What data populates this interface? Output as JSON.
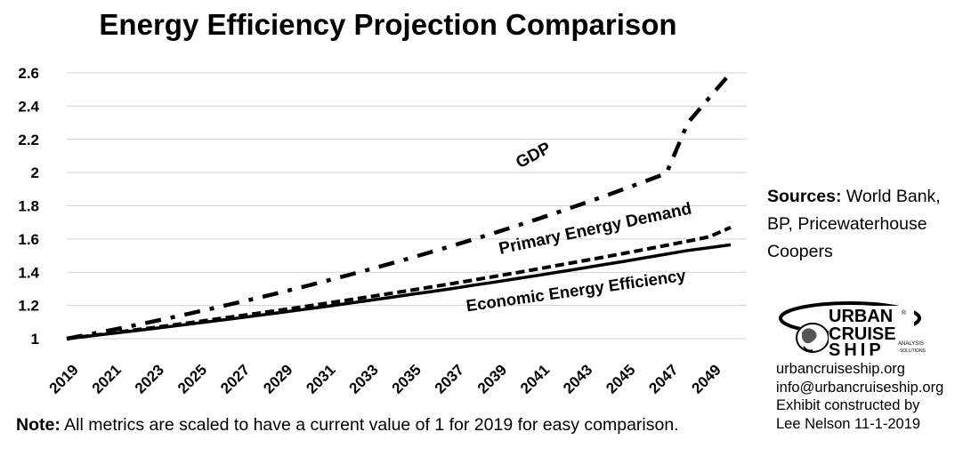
{
  "chart_data": {
    "type": "line",
    "title": "Energy Efficiency Projection Comparison",
    "xlabel": "",
    "ylabel": "",
    "x": [
      2019,
      2020,
      2021,
      2022,
      2023,
      2024,
      2025,
      2026,
      2027,
      2028,
      2029,
      2030,
      2031,
      2032,
      2033,
      2034,
      2035,
      2036,
      2037,
      2038,
      2039,
      2040,
      2041,
      2042,
      2043,
      2044,
      2045,
      2046,
      2047,
      2048,
      2049,
      2050
    ],
    "x_tick_labels": [
      "2019",
      "2021",
      "2023",
      "2025",
      "2027",
      "2029",
      "2031",
      "2033",
      "2035",
      "2037",
      "2039",
      "2041",
      "2043",
      "2045",
      "2047",
      "2049"
    ],
    "y_tick_labels": [
      "1",
      "1.2",
      "1.4",
      "1.6",
      "1.8",
      "2",
      "2.2",
      "2.4",
      "2.6"
    ],
    "ylim": [
      1,
      2.6
    ],
    "xlim": [
      2019,
      2050
    ],
    "grid": "horizontal",
    "series": [
      {
        "name": "GDP",
        "style": "dash-dot",
        "values": [
          1.0,
          1.025,
          1.05,
          1.076,
          1.103,
          1.13,
          1.159,
          1.188,
          1.218,
          1.248,
          1.279,
          1.311,
          1.344,
          1.378,
          1.412,
          1.448,
          1.484,
          1.521,
          1.559,
          1.598,
          1.638,
          1.679,
          1.721,
          1.764,
          1.808,
          1.853,
          1.9,
          1.947,
          1.996,
          2.3,
          2.45,
          2.6
        ]
      },
      {
        "name": "Primary Energy Demand",
        "style": "dashed",
        "values": [
          1.0,
          1.016,
          1.032,
          1.049,
          1.066,
          1.083,
          1.1,
          1.118,
          1.136,
          1.154,
          1.173,
          1.191,
          1.211,
          1.23,
          1.25,
          1.27,
          1.29,
          1.311,
          1.332,
          1.353,
          1.375,
          1.397,
          1.42,
          1.443,
          1.466,
          1.489,
          1.513,
          1.537,
          1.562,
          1.587,
          1.613,
          1.67
        ]
      },
      {
        "name": "Economic Energy Efficiency",
        "style": "solid",
        "values": [
          1.0,
          1.015,
          1.03,
          1.045,
          1.06,
          1.076,
          1.092,
          1.108,
          1.124,
          1.141,
          1.158,
          1.175,
          1.192,
          1.21,
          1.228,
          1.246,
          1.265,
          1.283,
          1.302,
          1.322,
          1.341,
          1.361,
          1.381,
          1.402,
          1.423,
          1.444,
          1.465,
          1.487,
          1.509,
          1.531,
          1.548,
          1.565
        ]
      }
    ]
  },
  "sources": {
    "label": "Sources:",
    "text": " World Bank, BP, Pricewaterhouse Coopers"
  },
  "note": {
    "label": "Note:",
    "text": " All metrics are scaled to have a current value of 1 for 2019 for easy comparison."
  },
  "logo": {
    "line1": "URBAN",
    "line2": "CRUISE",
    "line3": "SHIP",
    "tag1": "ANALYSIS",
    "tag2": "SOLUTIONS",
    "reg": "®"
  },
  "contact": [
    "urbancruiseship.org",
    "info@urbancruiseship.org",
    "Exhibit constructed by",
    "Lee Nelson 11-1-2019"
  ]
}
